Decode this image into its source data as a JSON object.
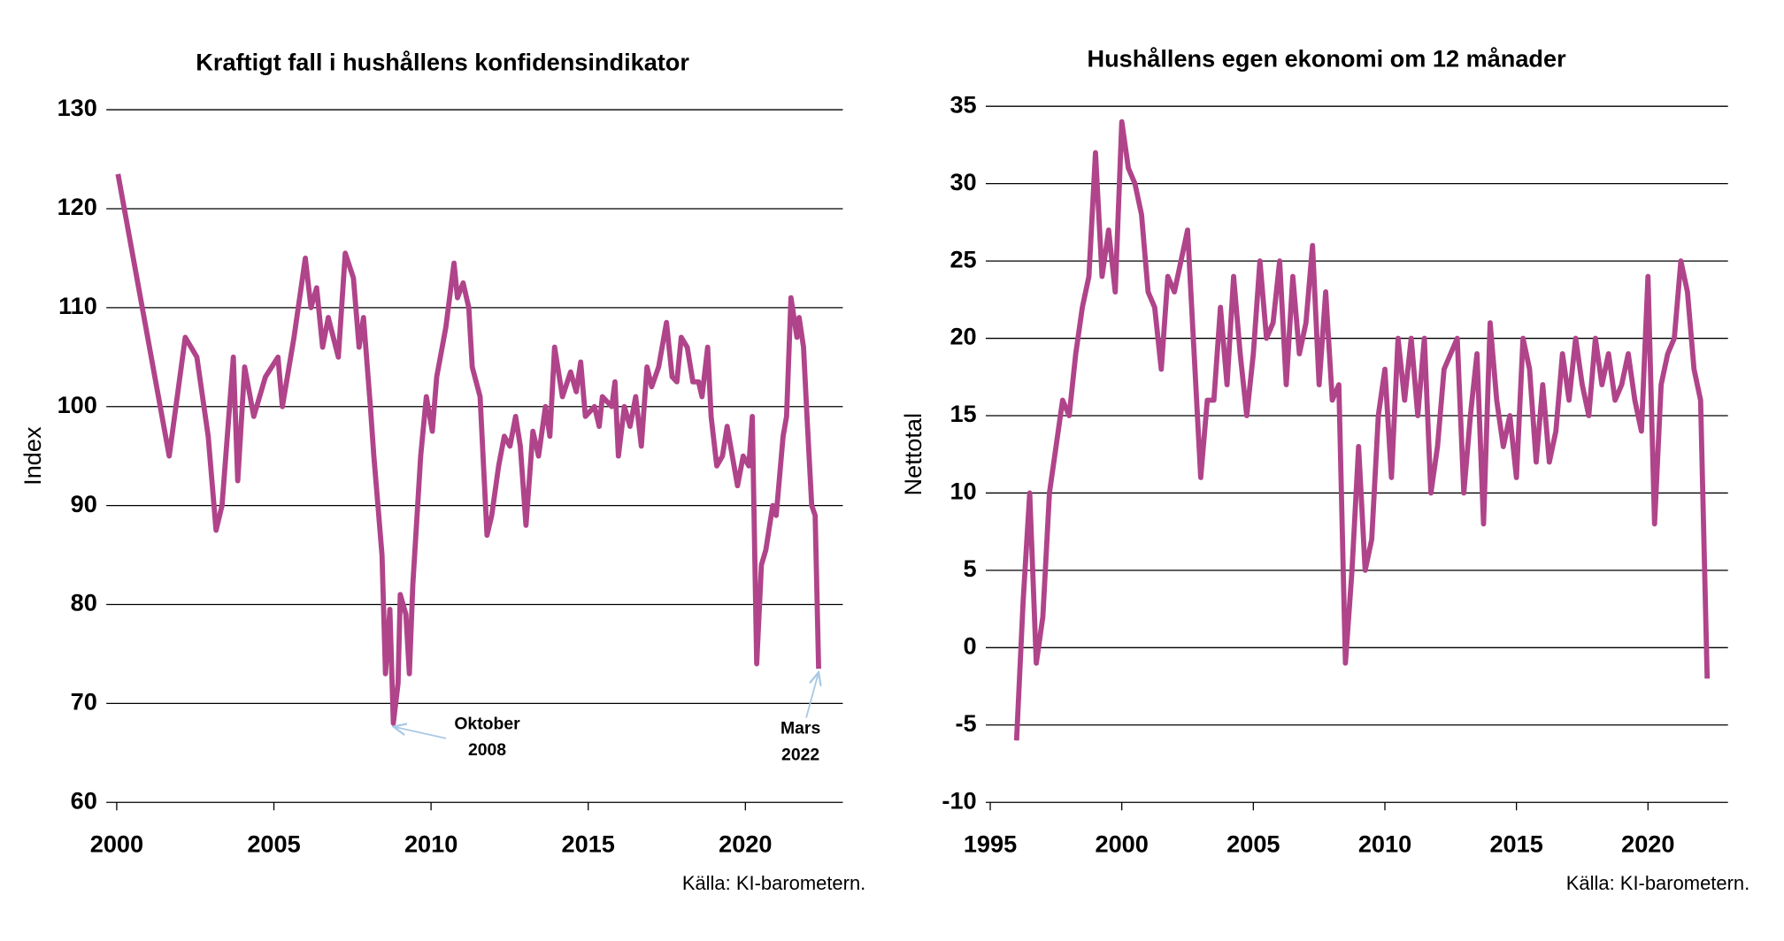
{
  "chart_data": [
    {
      "type": "line",
      "title": "Kraftigt fall i hushållens konfidensindikator",
      "ylabel": "Index",
      "source": "Källa: KI-barometern.",
      "xlim": [
        1999.67,
        2023.1
      ],
      "ylim": [
        60,
        130
      ],
      "xticks": [
        2000,
        2005,
        2010,
        2015,
        2020
      ],
      "yticks": [
        60,
        70,
        80,
        90,
        100,
        110,
        120,
        130
      ],
      "grid": true,
      "series": [
        {
          "name": "Konfidensindikator",
          "color": "#b0448a",
          "x": [
            2000.04,
            2001.27,
            2001.67,
            2002.18,
            2002.55,
            2002.91,
            2003.16,
            2003.35,
            2003.71,
            2003.85,
            2004.07,
            2004.36,
            2004.73,
            2005.13,
            2005.27,
            2005.64,
            2006.0,
            2006.18,
            2006.36,
            2006.55,
            2006.73,
            2007.05,
            2007.27,
            2007.53,
            2007.71,
            2007.85,
            2008.07,
            2008.18,
            2008.44,
            2008.55,
            2008.69,
            2008.8,
            2008.95,
            2009.02,
            2009.2,
            2009.31,
            2009.42,
            2009.67,
            2009.85,
            2010.04,
            2010.18,
            2010.47,
            2010.73,
            2010.84,
            2011.02,
            2011.2,
            2011.31,
            2011.56,
            2011.78,
            2011.93,
            2012.15,
            2012.33,
            2012.51,
            2012.69,
            2012.84,
            2013.02,
            2013.24,
            2013.42,
            2013.64,
            2013.78,
            2013.93,
            2014.18,
            2014.44,
            2014.62,
            2014.76,
            2014.91,
            2015.2,
            2015.35,
            2015.45,
            2015.75,
            2015.85,
            2015.96,
            2016.15,
            2016.33,
            2016.51,
            2016.69,
            2016.87,
            2017.02,
            2017.24,
            2017.49,
            2017.67,
            2017.82,
            2017.96,
            2018.15,
            2018.33,
            2018.51,
            2018.62,
            2018.8,
            2018.91,
            2019.09,
            2019.27,
            2019.42,
            2019.75,
            2019.93,
            2020.11,
            2020.22,
            2020.36,
            2020.51,
            2020.65,
            2020.87,
            2020.98,
            2021.2,
            2021.31,
            2021.45,
            2021.64,
            2021.71,
            2021.85,
            2021.96,
            2022.11,
            2022.22,
            2022.33
          ],
          "values": [
            123.5,
            102,
            95,
            107,
            105,
            97,
            87.5,
            90,
            105,
            92.5,
            104,
            99,
            103,
            105,
            100,
            107,
            115,
            110,
            112,
            106,
            109,
            105,
            115.5,
            113,
            106,
            109,
            100,
            95,
            85,
            73,
            79.5,
            68,
            72,
            81,
            79,
            73,
            82,
            95,
            101,
            97.5,
            103,
            108,
            114.5,
            111,
            112.5,
            110,
            104,
            101,
            87,
            89,
            94,
            97,
            96,
            99,
            96,
            88,
            97.5,
            95,
            100,
            97,
            106,
            101,
            103.5,
            101.5,
            104.5,
            99,
            100,
            98,
            101,
            100,
            102.5,
            95,
            100,
            98,
            101,
            96,
            104,
            102,
            104,
            108.5,
            103,
            102.5,
            107,
            106,
            102.5,
            102.5,
            101,
            106,
            99,
            94,
            95,
            98,
            92,
            95,
            94,
            99,
            74,
            84,
            85.5,
            90,
            89,
            97,
            99,
            111,
            107,
            109,
            106,
            99,
            90,
            89,
            73.5
          ]
        }
      ],
      "annotations": [
        {
          "text": [
            "Oktober",
            "2008"
          ],
          "x": 2008.8,
          "y": 68
        },
        {
          "text": [
            "Mars",
            "2022"
          ],
          "x": 2022.33,
          "y": 73.5
        }
      ]
    },
    {
      "type": "line",
      "title": "Hushållens egen ekonomi om 12 månader",
      "ylabel": "Nettotal",
      "source": "Källa: KI-barometern.",
      "xlim": [
        1994.83,
        2023.04
      ],
      "ylim": [
        -10,
        35
      ],
      "xticks": [
        1995,
        2000,
        2005,
        2010,
        2015,
        2020
      ],
      "yticks": [
        -10,
        -5,
        0,
        5,
        10,
        15,
        20,
        25,
        30,
        35
      ],
      "grid": true,
      "series": [
        {
          "name": "Nettotal",
          "color": "#b0448a",
          "x": [
            1996,
            1996.25,
            1996.5,
            1996.75,
            1997,
            1997.25,
            1997.5,
            1997.75,
            1998,
            1998.25,
            1998.5,
            1998.75,
            1999,
            1999.25,
            1999.5,
            1999.75,
            2000,
            2000.25,
            2000.5,
            2000.75,
            2001,
            2001.25,
            2001.5,
            2001.75,
            2002,
            2002.25,
            2002.5,
            2002.75,
            2003,
            2003.25,
            2003.5,
            2003.75,
            2004,
            2004.25,
            2004.5,
            2004.75,
            2005,
            2005.25,
            2005.5,
            2005.75,
            2006,
            2006.25,
            2006.5,
            2006.75,
            2007,
            2007.25,
            2007.5,
            2007.75,
            2008,
            2008.25,
            2008.5,
            2008.75,
            2009,
            2009.25,
            2009.5,
            2009.75,
            2010,
            2010.25,
            2010.5,
            2010.75,
            2011,
            2011.25,
            2011.5,
            2011.75,
            2012,
            2012.25,
            2012.5,
            2012.75,
            2013,
            2013.25,
            2013.5,
            2013.75,
            2014,
            2014.25,
            2014.5,
            2014.75,
            2015,
            2015.25,
            2015.5,
            2015.75,
            2016,
            2016.25,
            2016.5,
            2016.75,
            2017,
            2017.25,
            2017.5,
            2017.75,
            2018,
            2018.25,
            2018.5,
            2018.75,
            2019,
            2019.25,
            2019.5,
            2019.75,
            2020,
            2020.25,
            2020.5,
            2020.75,
            2021,
            2021.25,
            2021.5,
            2021.75,
            2022,
            2022.25
          ],
          "values": [
            -6,
            3,
            10,
            -1,
            2,
            10,
            13,
            16,
            15,
            19,
            22,
            24,
            32,
            24,
            27,
            23,
            34,
            31,
            30,
            28,
            23,
            22,
            18,
            24,
            23,
            25,
            27,
            19,
            11,
            16,
            16,
            22,
            17,
            24,
            19,
            15,
            19,
            25,
            20,
            21,
            25,
            17,
            24,
            19,
            21,
            26,
            17,
            23,
            16,
            17,
            -1,
            5,
            13,
            5,
            7,
            15,
            18,
            11,
            20,
            16,
            20,
            15,
            20,
            10,
            13,
            18,
            19,
            20,
            10,
            15,
            19,
            8,
            21,
            16,
            13,
            15,
            11,
            20,
            18,
            12,
            17,
            12,
            14,
            19,
            16,
            20,
            17,
            15,
            20,
            17,
            19,
            16,
            17,
            19,
            16,
            14,
            24,
            8,
            17,
            19,
            20,
            25,
            23,
            18,
            16,
            -2
          ]
        }
      ]
    }
  ]
}
